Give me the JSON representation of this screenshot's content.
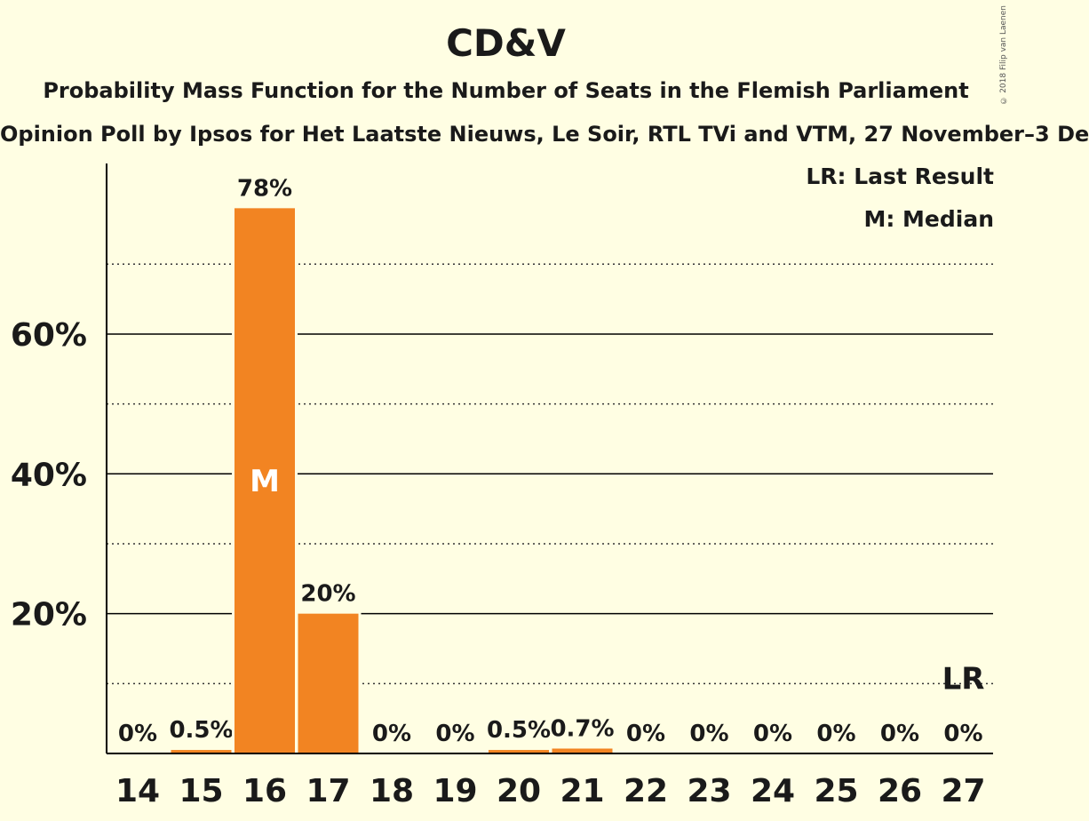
{
  "header": {
    "title": "CD&V",
    "subtitle": "Probability Mass Function for the Number of Seats in the Flemish Parliament",
    "subtitle2": "Opinion Poll by Ipsos for Het Laatste Nieuws, Le Soir, RTL TVi and VTM, 27 November–3 De",
    "copyright": "© 2018 Filip van Laenen"
  },
  "legend": {
    "last_result": "LR: Last Result",
    "median": "M: Median"
  },
  "colors": {
    "background": "#FFFEE3",
    "bar": "#F28422",
    "text": "#1a1a1a"
  },
  "chart_data": {
    "type": "bar",
    "categories": [
      "14",
      "15",
      "16",
      "17",
      "18",
      "19",
      "20",
      "21",
      "22",
      "23",
      "24",
      "25",
      "26",
      "27"
    ],
    "values": [
      0,
      0.5,
      78,
      20,
      0,
      0,
      0.5,
      0.7,
      0,
      0,
      0,
      0,
      0,
      0
    ],
    "value_labels": [
      "0%",
      "0.5%",
      "78%",
      "20%",
      "0%",
      "0%",
      "0.5%",
      "0.7%",
      "0%",
      "0%",
      "0%",
      "0%",
      "0%",
      "0%"
    ],
    "y_ticks": [
      20,
      40,
      60
    ],
    "y_tick_labels": [
      "20%",
      "40%",
      "60%"
    ],
    "y_minor_ticks": [
      10,
      30,
      50,
      70
    ],
    "ylim": [
      0,
      84.4
    ],
    "median_category": "16",
    "median_label": "M",
    "last_result_category": "27",
    "last_result_label": "LR"
  }
}
